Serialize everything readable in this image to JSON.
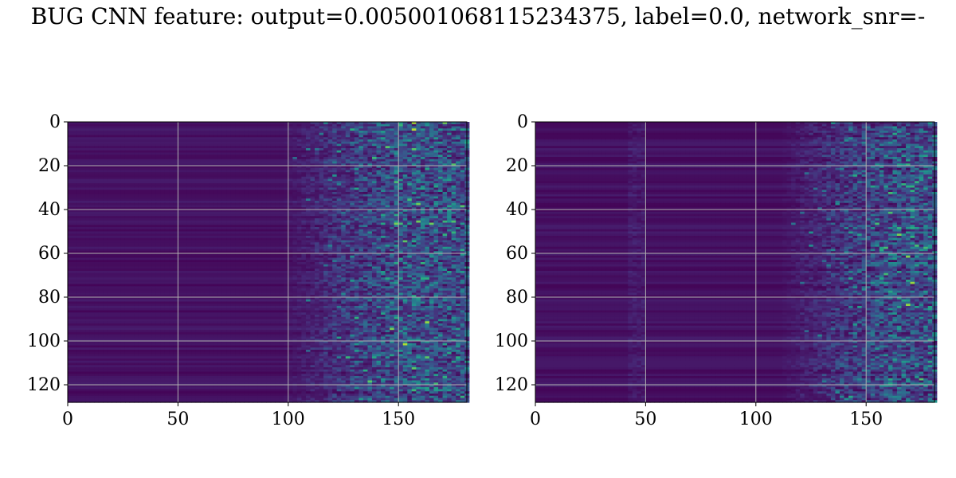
{
  "suptitle": "BUG CNN feature: output=0.005001068115234375, label=0.0, network_snr=-",
  "chart_data": [
    {
      "type": "heatmap",
      "panel": "left",
      "colormap": "viridis",
      "xlim": [
        0,
        181
      ],
      "ylim": [
        128,
        0
      ],
      "x_ticks": [
        0,
        50,
        100,
        150
      ],
      "y_ticks": [
        0,
        20,
        40,
        60,
        80,
        100,
        120
      ],
      "grid": true,
      "grid_color": "#b0b0b0",
      "rows": 128,
      "cols": 181,
      "activity_onset_col": 112,
      "title": "",
      "xlabel": "",
      "ylabel": ""
    },
    {
      "type": "heatmap",
      "panel": "right",
      "colormap": "viridis",
      "xlim": [
        0,
        181
      ],
      "ylim": [
        128,
        0
      ],
      "x_ticks": [
        0,
        50,
        100,
        150
      ],
      "y_ticks": [
        0,
        20,
        40,
        60,
        80,
        100,
        120
      ],
      "grid": true,
      "grid_color": "#b0b0b0",
      "rows": 128,
      "cols": 181,
      "activity_onset_col": 125,
      "vertical_band_col": 45,
      "title": "",
      "xlabel": "",
      "ylabel": ""
    }
  ]
}
